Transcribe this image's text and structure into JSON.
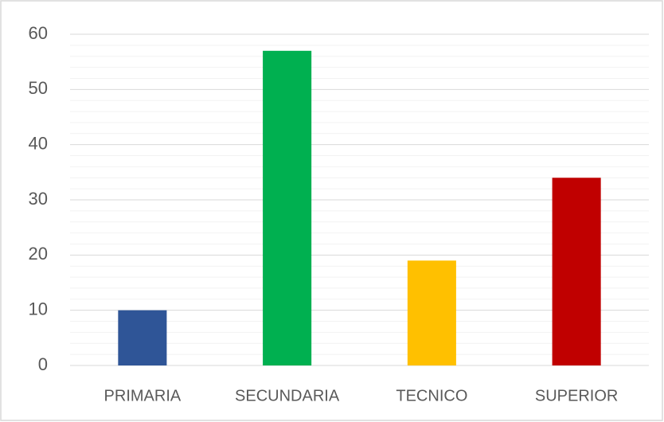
{
  "chart_data": {
    "type": "bar",
    "categories": [
      "PRIMARIA",
      "SECUNDARIA",
      "TECNICO",
      "SUPERIOR"
    ],
    "values": [
      10,
      57,
      19,
      34
    ],
    "colors": [
      "#2f5597",
      "#00b050",
      "#ffc000",
      "#c00000"
    ],
    "ylim": [
      0,
      60
    ],
    "yticks": [
      0,
      10,
      20,
      30,
      40,
      50,
      60
    ],
    "minor_yticks": [
      2,
      4,
      6,
      8,
      12,
      14,
      16,
      18,
      22,
      24,
      26,
      28,
      32,
      34,
      36,
      38,
      42,
      44,
      46,
      48,
      52,
      54,
      56,
      58
    ],
    "grid": true,
    "minor_grid": true
  }
}
